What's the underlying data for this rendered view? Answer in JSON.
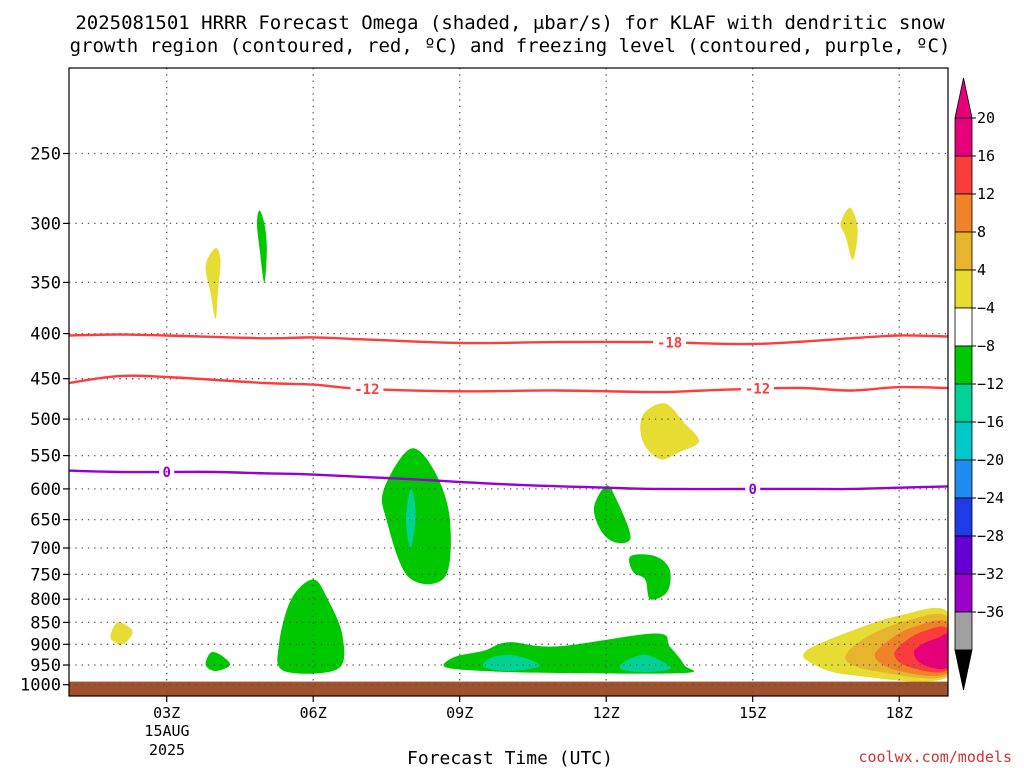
{
  "chart_data": {
    "type": "heatmap",
    "title_line1": "2025081501 HRRR Forecast Omega (shaded, μbar/s) for KLAF with dendritic snow",
    "title_line2": "growth region (contoured, red, ºC) and freezing level (contoured, purple, ºC)",
    "xlabel": "Forecast Time (UTC)",
    "x_range_hours": [
      1,
      19
    ],
    "x_ticks": [
      {
        "hour": 3,
        "label": "03Z"
      },
      {
        "hour": 6,
        "label": "06Z"
      },
      {
        "hour": 9,
        "label": "09Z"
      },
      {
        "hour": 12,
        "label": "12Z"
      },
      {
        "hour": 15,
        "label": "15Z"
      },
      {
        "hour": 18,
        "label": "18Z"
      }
    ],
    "date_label_line1": "15AUG",
    "date_label_line2": "2025",
    "y_axis": "pressure (hPa), log scale",
    "y_range": [
      1030,
      200
    ],
    "y_ticks": [
      250,
      300,
      350,
      400,
      450,
      500,
      550,
      600,
      650,
      700,
      750,
      800,
      850,
      900,
      950,
      1000
    ],
    "grid": "dotted",
    "colorbar": {
      "levels": [
        -36,
        -32,
        -28,
        -24,
        -20,
        -16,
        -12,
        -8,
        -4,
        4,
        8,
        12,
        16,
        20
      ],
      "colors": [
        "#a0a0a0",
        "#9b00c8",
        "#6400d2",
        "#1e3ce6",
        "#1e8cf0",
        "#00c8c8",
        "#00d296",
        "#00c800",
        "#ffffff",
        "#e6dc32",
        "#e6b42d",
        "#f08228",
        "#fa3c3c",
        "#e6007a"
      ],
      "over_color": "#e6007a",
      "under_color": "#000000"
    },
    "contours": [
      {
        "name": "-18",
        "color": "#ff3c3c",
        "points": [
          [
            1,
            402
          ],
          [
            2,
            401
          ],
          [
            3,
            402
          ],
          [
            5,
            405
          ],
          [
            6,
            404
          ],
          [
            7,
            406
          ],
          [
            9,
            410
          ],
          [
            11,
            409
          ],
          [
            13,
            409
          ],
          [
            15,
            411
          ],
          [
            17,
            405
          ],
          [
            18,
            402
          ],
          [
            19,
            403
          ]
        ],
        "labels": [
          {
            "hour": 13.3,
            "text": "-18"
          }
        ]
      },
      {
        "name": "-12",
        "color": "#ff3c3c",
        "points": [
          [
            1,
            455
          ],
          [
            2,
            447
          ],
          [
            3,
            448
          ],
          [
            5,
            455
          ],
          [
            6,
            457
          ],
          [
            7,
            462
          ],
          [
            9,
            465
          ],
          [
            11,
            464
          ],
          [
            13,
            466
          ],
          [
            14,
            464
          ],
          [
            15,
            462
          ],
          [
            16,
            461
          ],
          [
            17,
            464
          ],
          [
            18,
            460
          ],
          [
            19,
            461
          ]
        ],
        "labels": [
          {
            "hour": 7.1,
            "text": "-12"
          },
          {
            "hour": 15.1,
            "text": "-12"
          }
        ]
      },
      {
        "name": "0",
        "color": "#9600d2",
        "points": [
          [
            1,
            572
          ],
          [
            2,
            574
          ],
          [
            3,
            574
          ],
          [
            4,
            574
          ],
          [
            5,
            576
          ],
          [
            6,
            578
          ],
          [
            8,
            585
          ],
          [
            10,
            593
          ],
          [
            12,
            598
          ],
          [
            13,
            600
          ],
          [
            15,
            600
          ],
          [
            16,
            600
          ],
          [
            17,
            600
          ],
          [
            18,
            598
          ],
          [
            19,
            596
          ]
        ],
        "labels": [
          {
            "hour": 3,
            "text": "0"
          },
          {
            "hour": 15,
            "text": "0"
          }
        ]
      }
    ],
    "shaded_regions": [
      {
        "bin": "-8 to -4",
        "color": "#00c800",
        "points": [
          [
            4.9,
            290
          ],
          [
            5.0,
            300
          ],
          [
            5.05,
            320
          ],
          [
            5.0,
            350
          ],
          [
            4.9,
            320
          ],
          [
            4.85,
            300
          ]
        ]
      },
      {
        "bin": "4 to 8",
        "color": "#e6dc32",
        "points": [
          [
            4.0,
            320
          ],
          [
            4.1,
            330
          ],
          [
            4.05,
            360
          ],
          [
            4.0,
            385
          ],
          [
            3.9,
            360
          ],
          [
            3.8,
            335
          ]
        ]
      },
      {
        "bin": "4 to 8",
        "color": "#e6dc32",
        "points": [
          [
            17.0,
            288
          ],
          [
            17.15,
            305
          ],
          [
            17.05,
            330
          ],
          [
            16.9,
            310
          ],
          [
            16.8,
            300
          ]
        ]
      },
      {
        "bin": "4 to 8",
        "color": "#e6dc32",
        "points": [
          [
            13.2,
            480
          ],
          [
            13.6,
            505
          ],
          [
            13.9,
            530
          ],
          [
            13.5,
            545
          ],
          [
            13.1,
            555
          ],
          [
            12.75,
            530
          ],
          [
            12.75,
            495
          ]
        ]
      },
      {
        "bin": "-8 to -4",
        "color": "#00c800",
        "points": [
          [
            8.0,
            540
          ],
          [
            8.5,
            575
          ],
          [
            8.8,
            650
          ],
          [
            8.7,
            755
          ],
          [
            7.95,
            755
          ],
          [
            7.5,
            650
          ],
          [
            7.45,
            600
          ]
        ]
      },
      {
        "bin": "-12 to -8",
        "color": "#00d296",
        "points": [
          [
            8.0,
            600
          ],
          [
            8.1,
            640
          ],
          [
            8.0,
            700
          ],
          [
            7.9,
            650
          ]
        ]
      },
      {
        "bin": "-8 to -4",
        "color": "#00c800",
        "points": [
          [
            12.0,
            595
          ],
          [
            12.2,
            615
          ],
          [
            12.5,
            680
          ],
          [
            12.2,
            690
          ],
          [
            11.9,
            670
          ],
          [
            11.75,
            630
          ]
        ]
      },
      {
        "bin": "-8 to -4",
        "color": "#00c800",
        "points": [
          [
            12.5,
            715
          ],
          [
            13.0,
            715
          ],
          [
            13.3,
            740
          ],
          [
            13.25,
            785
          ],
          [
            12.9,
            800
          ],
          [
            12.8,
            760
          ],
          [
            12.55,
            745
          ]
        ]
      },
      {
        "bin": "-8 to -4",
        "color": "#00c800",
        "points": [
          [
            6.0,
            760
          ],
          [
            6.3,
            800
          ],
          [
            6.6,
            880
          ],
          [
            6.5,
            960
          ],
          [
            5.4,
            965
          ],
          [
            5.3,
            900
          ],
          [
            5.55,
            800
          ]
        ]
      },
      {
        "bin": "-8 to -4",
        "color": "#00c800",
        "points": [
          [
            3.9,
            920
          ],
          [
            4.1,
            925
          ],
          [
            4.3,
            950
          ],
          [
            4.0,
            965
          ],
          [
            3.8,
            950
          ]
        ]
      },
      {
        "bin": "4 to 8",
        "color": "#e6dc32",
        "points": [
          [
            2.0,
            850
          ],
          [
            2.3,
            870
          ],
          [
            2.1,
            900
          ],
          [
            1.85,
            885
          ]
        ]
      },
      {
        "bin": "-8 to -4",
        "color": "#00c800",
        "points": [
          [
            10.0,
            895
          ],
          [
            11.0,
            905
          ],
          [
            13.0,
            875
          ],
          [
            13.3,
            905
          ],
          [
            13.6,
            950
          ],
          [
            13.6,
            970
          ],
          [
            11.0,
            970
          ],
          [
            9.5,
            965
          ],
          [
            8.7,
            955
          ],
          [
            8.9,
            930
          ],
          [
            9.5,
            915
          ]
        ]
      },
      {
        "bin": "-12 to -8",
        "color": "#00d296",
        "points": [
          [
            10.0,
            925
          ],
          [
            10.5,
            940
          ],
          [
            10.6,
            955
          ],
          [
            10.0,
            965
          ],
          [
            9.5,
            955
          ],
          [
            9.6,
            935
          ]
        ]
      },
      {
        "bin": "-12 to -8",
        "color": "#00d296",
        "points": [
          [
            12.8,
            925
          ],
          [
            13.2,
            945
          ],
          [
            13.3,
            960
          ],
          [
            12.8,
            968
          ],
          [
            12.3,
            960
          ],
          [
            12.4,
            940
          ]
        ]
      },
      {
        "bin": "4 to 8",
        "color": "#e6dc32",
        "points": [
          [
            18.0,
            835
          ],
          [
            19.0,
            828
          ],
          [
            19.0,
            980
          ],
          [
            17.0,
            975
          ],
          [
            16.2,
            945
          ],
          [
            16.1,
            915
          ],
          [
            17.0,
            870
          ]
        ]
      },
      {
        "bin": "8 to 12",
        "color": "#e6b42d",
        "points": [
          [
            18.2,
            845
          ],
          [
            19.0,
            840
          ],
          [
            19.0,
            975
          ],
          [
            17.5,
            965
          ],
          [
            16.9,
            935
          ],
          [
            17.3,
            885
          ]
        ]
      },
      {
        "bin": "12 to 16",
        "color": "#f08228",
        "points": [
          [
            18.3,
            860
          ],
          [
            19.0,
            852
          ],
          [
            19.0,
            968
          ],
          [
            18.0,
            965
          ],
          [
            17.5,
            930
          ],
          [
            17.8,
            890
          ]
        ]
      },
      {
        "bin": "16 to 20",
        "color": "#fa3c3c",
        "points": [
          [
            18.5,
            870
          ],
          [
            19.0,
            865
          ],
          [
            19.0,
            962
          ],
          [
            18.2,
            955
          ],
          [
            17.9,
            925
          ],
          [
            18.1,
            895
          ]
        ]
      },
      {
        "bin": ">20",
        "color": "#e6007a",
        "points": [
          [
            18.8,
            885
          ],
          [
            19.0,
            880
          ],
          [
            19.0,
            955
          ],
          [
            18.5,
            950
          ],
          [
            18.3,
            920
          ],
          [
            18.5,
            898
          ]
        ]
      }
    ],
    "terrain": {
      "color": "#a0522d",
      "top_pressure": 992
    }
  },
  "footer": {
    "credit": "coolwx.com/models"
  }
}
